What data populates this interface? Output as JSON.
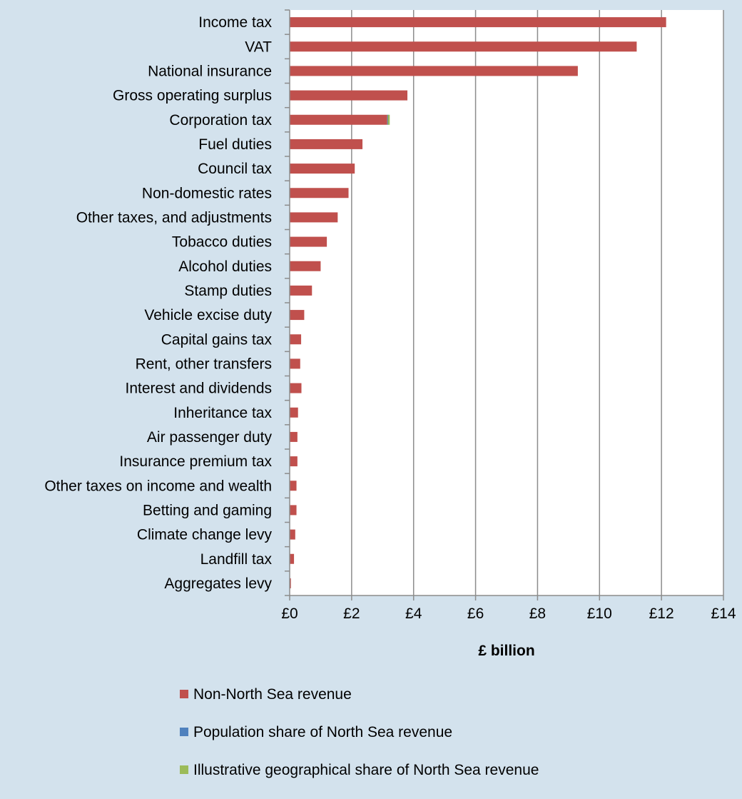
{
  "chart_data": {
    "type": "bar",
    "orientation": "horizontal",
    "stacked": true,
    "title": "",
    "xlabel": "£ billion",
    "ylabel": "",
    "xlim": [
      0,
      14
    ],
    "x_tick_labels": [
      "£0",
      "£2",
      "£4",
      "£6",
      "£8",
      "£10",
      "£12",
      "£14"
    ],
    "grid": "vertical",
    "legend_position": "bottom",
    "categories": [
      "Income tax",
      "VAT",
      "National insurance",
      "Gross operating surplus",
      "Corporation tax",
      "Fuel duties",
      "Council tax",
      "Non-domestic rates",
      "Other taxes, and adjustments",
      "Tobacco duties",
      "Alcohol duties",
      "Stamp duties",
      "Vehicle excise duty",
      "Capital gains tax",
      "Rent, other transfers",
      "Interest and dividends",
      "Inheritance tax",
      "Air passenger duty",
      "Insurance premium tax",
      "Other taxes on income and wealth",
      "Betting and gaming",
      "Climate change levy",
      "Landfill tax",
      "Aggregates levy"
    ],
    "series": [
      {
        "name": "Non-North Sea revenue",
        "color": "#c0504d",
        "values": [
          12.15,
          11.2,
          9.3,
          3.8,
          3.15,
          2.35,
          2.1,
          1.9,
          1.55,
          1.2,
          1.0,
          0.72,
          0.47,
          0.37,
          0.34,
          0.38,
          0.27,
          0.25,
          0.25,
          0.22,
          0.22,
          0.18,
          0.14,
          0.04
        ]
      },
      {
        "name": "Population share of North Sea revenue",
        "color": "#4f81bd",
        "values": [
          0,
          0,
          0,
          0,
          0.02,
          0,
          0,
          0,
          0,
          0,
          0,
          0,
          0,
          0,
          0,
          0,
          0,
          0,
          0,
          0,
          0,
          0,
          0,
          0
        ]
      },
      {
        "name": "Illustrative geographical share of North Sea revenue",
        "color": "#9bbb59",
        "values": [
          0,
          0,
          0,
          0,
          0.06,
          0,
          0,
          0,
          0,
          0,
          0,
          0,
          0,
          0,
          0,
          0,
          0,
          0,
          0,
          0,
          0,
          0,
          0,
          0
        ]
      }
    ]
  }
}
